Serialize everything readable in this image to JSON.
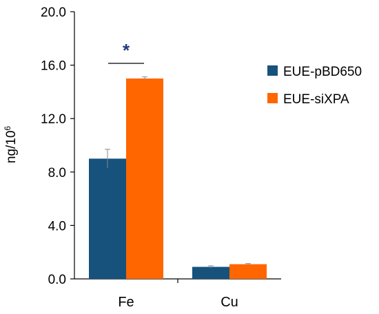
{
  "chart_data": {
    "type": "bar",
    "categories": [
      "Fe",
      "Cu"
    ],
    "series": [
      {
        "name": "EUE-pBD650",
        "color": "#17527c",
        "values": [
          9.0,
          0.9
        ],
        "errors": [
          0.7,
          0.08
        ]
      },
      {
        "name": "EUE-siXPA",
        "color": "#ff6600",
        "values": [
          15.0,
          1.1
        ],
        "errors": [
          0.12,
          0.05
        ]
      }
    ],
    "ylabel": "ng/10",
    "ylabel_sup": "6",
    "ylim": [
      0,
      20
    ],
    "yticks": [
      "0.0",
      "4.0",
      "8.0",
      "12.0",
      "16.0",
      "20.0"
    ],
    "ytick_values": [
      0,
      4,
      8,
      12,
      16,
      20
    ],
    "grid": false,
    "legend_position": "right",
    "significance": {
      "category": "Fe",
      "symbol": "*"
    }
  }
}
